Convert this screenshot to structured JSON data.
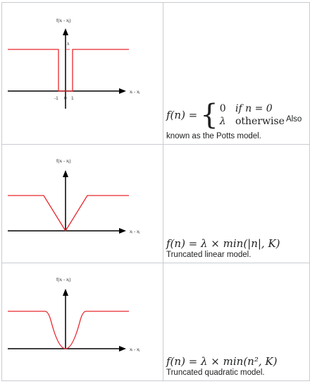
{
  "rows": [
    {
      "y_axis_label": "f(xᵢ - xⱼ)",
      "x_axis_label": "xᵢ - xⱼ",
      "ticks": [
        "-1",
        "0",
        "1"
      ],
      "lambda_label": "λ",
      "formula_lhs": "f(n) =",
      "case1_value": "0",
      "case1_cond": "if n = 0",
      "case2_value": "λ",
      "case2_cond": "otherwise",
      "desc_inline": "Also",
      "description": "known as the Potts model."
    },
    {
      "y_axis_label": "f(xᵢ - xⱼ)",
      "x_axis_label": "xᵢ - xⱼ",
      "formula": "f(n) = λ × min(|n|, K)",
      "description": "Truncated linear model."
    },
    {
      "y_axis_label": "f(xᵢ - xⱼ)",
      "x_axis_label": "xᵢ - xⱼ",
      "formula": "f(n) = λ × min(n², K)",
      "description": "Truncated quadratic model."
    }
  ],
  "colors": {
    "curve": "#e8272d",
    "axis": "#000000",
    "border": "#c8ccd1"
  }
}
